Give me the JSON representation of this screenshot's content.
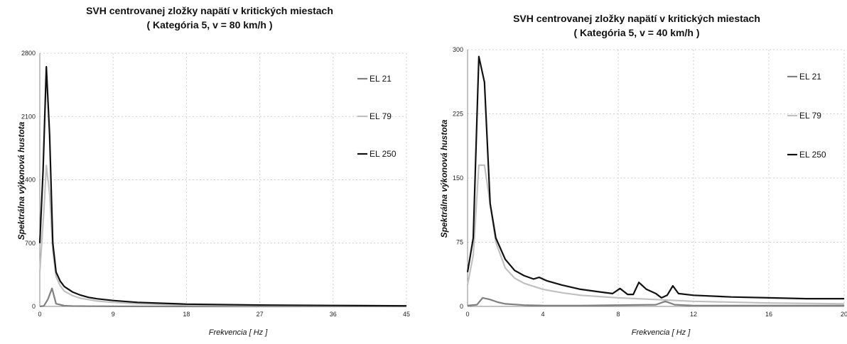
{
  "chart_data": [
    {
      "type": "line",
      "title": "SVH centrovanej zložky napätí v kritických miestach",
      "subtitle": "( Kategória 5, v = 80 km/h )",
      "xlabel": "Frekvencia [ Hz ]",
      "ylabel": "Spektrálna výkonová hustota",
      "xlim": [
        0,
        45
      ],
      "ylim": [
        0,
        2800
      ],
      "xticks": [
        "0",
        "9",
        "18",
        "27",
        "36",
        "45"
      ],
      "yticks": [
        "0",
        "700",
        "1400",
        "2100",
        "2800"
      ],
      "grid": true,
      "legend": "right",
      "series": [
        {
          "name": "EL 21",
          "color": "#808080",
          "x": [
            0,
            0.5,
            1,
            1.5,
            2,
            3,
            4,
            6,
            10,
            20,
            45
          ],
          "y": [
            0,
            5,
            80,
            200,
            30,
            8,
            4,
            2,
            1,
            0,
            0
          ]
        },
        {
          "name": "EL 79",
          "color": "#c0c0c0",
          "x": [
            0,
            0.5,
            0.8,
            1.2,
            1.6,
            2,
            2.5,
            3,
            4,
            5,
            6,
            7,
            9,
            12,
            18,
            27,
            36,
            45
          ],
          "y": [
            380,
            1050,
            1560,
            1250,
            620,
            330,
            230,
            170,
            120,
            90,
            75,
            60,
            45,
            30,
            15,
            8,
            5,
            3
          ]
        },
        {
          "name": "EL 250",
          "color": "#111111",
          "x": [
            0,
            0.4,
            0.8,
            1.2,
            1.6,
            2,
            2.5,
            3,
            4,
            5,
            6,
            7,
            9,
            12,
            18,
            27,
            36,
            45
          ],
          "y": [
            700,
            1500,
            2650,
            1900,
            700,
            380,
            280,
            220,
            160,
            125,
            100,
            85,
            65,
            45,
            25,
            15,
            10,
            6
          ]
        }
      ]
    },
    {
      "type": "line",
      "title": "SVH centrovanej zložky napätí v kritických miestach",
      "subtitle": "( Kategória 5, v = 40 km/h )",
      "xlabel": "Frekvencia [ Hz ]",
      "ylabel": "Spektrálna výkonová hustota",
      "xlim": [
        0,
        20
      ],
      "ylim": [
        0,
        300
      ],
      "xticks": [
        "0",
        "4",
        "8",
        "12",
        "16",
        "20"
      ],
      "yticks": [
        "0",
        "75",
        "150",
        "225",
        "300"
      ],
      "grid": true,
      "legend": "right",
      "series": [
        {
          "name": "EL 21",
          "color": "#808080",
          "x": [
            0,
            0.5,
            0.8,
            1.2,
            1.6,
            2,
            3,
            4,
            6,
            10,
            10.5,
            11,
            12,
            16,
            20
          ],
          "y": [
            1,
            2,
            10,
            8,
            5,
            3,
            1.5,
            1,
            1,
            2,
            6,
            2,
            1,
            1,
            1
          ]
        },
        {
          "name": "EL 79",
          "color": "#c0c0c0",
          "x": [
            0,
            0.3,
            0.6,
            0.9,
            1.2,
            1.5,
            2,
            2.5,
            3,
            4,
            5,
            6,
            8,
            10,
            12,
            16,
            20
          ],
          "y": [
            25,
            60,
            165,
            165,
            120,
            75,
            45,
            33,
            27,
            20,
            16,
            13,
            10,
            8,
            6,
            4,
            3
          ]
        },
        {
          "name": "EL 250",
          "color": "#111111",
          "x": [
            0,
            0.3,
            0.6,
            0.9,
            1.2,
            1.5,
            2,
            2.5,
            3,
            3.5,
            3.8,
            4.2,
            5,
            6,
            7,
            7.7,
            8.1,
            8.5,
            8.8,
            9.1,
            9.5,
            10,
            10.3,
            10.6,
            10.9,
            11.2,
            12,
            14,
            16,
            18,
            20
          ],
          "y": [
            40,
            80,
            292,
            262,
            120,
            80,
            55,
            42,
            36,
            32,
            34,
            30,
            25,
            20,
            17,
            15,
            21,
            14,
            14,
            28,
            20,
            15,
            10,
            13,
            24,
            15,
            13,
            11,
            10,
            9,
            9
          ]
        }
      ]
    }
  ]
}
